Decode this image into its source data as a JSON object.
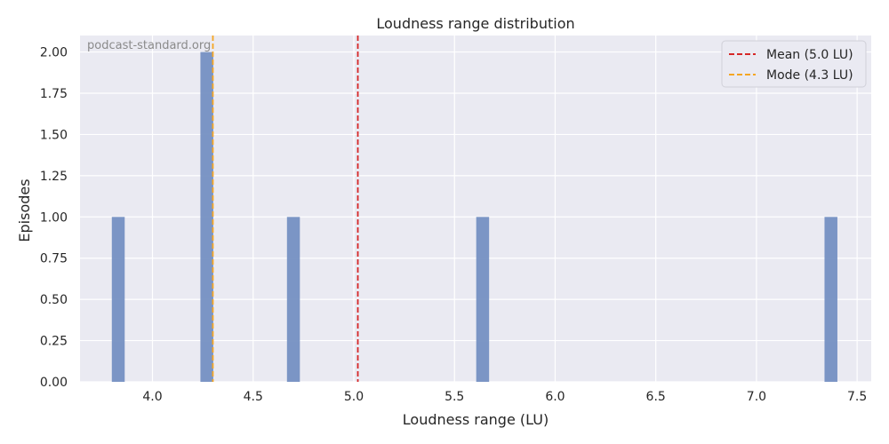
{
  "chart_data": {
    "type": "bar",
    "title": "Loudness range distribution",
    "xlabel": "Loudness range (LU)",
    "ylabel": "Episodes",
    "watermark": "podcast-standard.org",
    "xlim": [
      3.64,
      7.57
    ],
    "ylim": [
      0,
      2.1
    ],
    "xticks": [
      "4.0",
      "4.5",
      "5.0",
      "5.5",
      "6.0",
      "6.5",
      "7.0",
      "7.5"
    ],
    "yticks": [
      "0.00",
      "0.25",
      "0.50",
      "0.75",
      "1.00",
      "1.25",
      "1.50",
      "1.75",
      "2.00"
    ],
    "bin_width": 0.064,
    "bins": [
      {
        "x": 3.83,
        "count": 1
      },
      {
        "x": 4.27,
        "count": 2
      },
      {
        "x": 4.7,
        "count": 1
      },
      {
        "x": 5.64,
        "count": 1
      },
      {
        "x": 7.37,
        "count": 1
      }
    ],
    "reference_lines": [
      {
        "label": "Mean (5.0 LU)",
        "x": 5.02,
        "color": "#d62728",
        "style": "dashed"
      },
      {
        "label": "Mode (4.3 LU)",
        "x": 4.3,
        "color": "#f5a623",
        "style": "dashed"
      }
    ],
    "grid": true,
    "legend_position": "top-right",
    "colors": {
      "bar": "#7590c2",
      "plot_background": "#eaeaf2",
      "grid": "#ffffff"
    }
  }
}
